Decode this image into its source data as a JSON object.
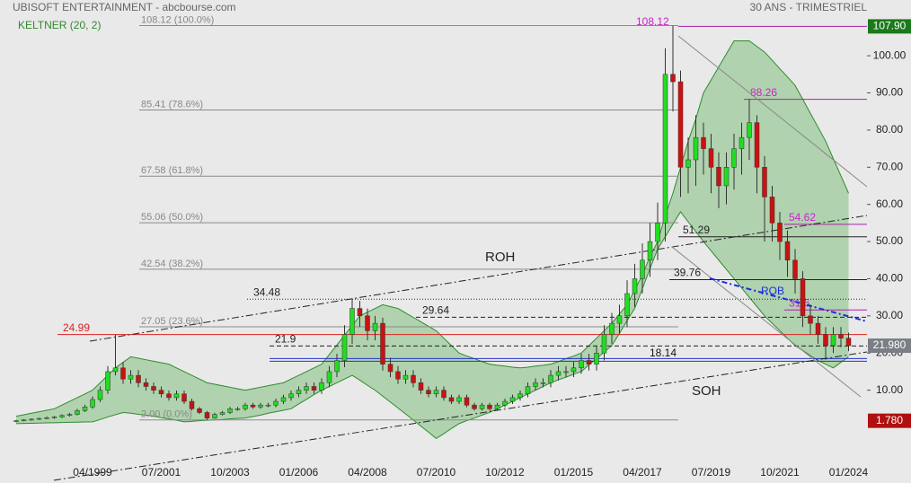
{
  "chart_data": {
    "type": "candlestick",
    "title": "UBISOFT ENTERTAINMENT - abcbourse.com",
    "subtitle": "30 ANS - TRIMESTRIEL",
    "up_color": "#22dd22",
    "down_color": "#cc1111",
    "categories": [
      null,
      null,
      null,
      null,
      null,
      null,
      null,
      null,
      null,
      null,
      "04/1999",
      null,
      null,
      null,
      null,
      null,
      null,
      null,
      null,
      "07/2001",
      null,
      null,
      null,
      null,
      null,
      null,
      null,
      null,
      "10/2003",
      null,
      null,
      null,
      null,
      null,
      null,
      null,
      null,
      "01/2006",
      null,
      null,
      null,
      null,
      null,
      null,
      null,
      null,
      "04/2008",
      null,
      null,
      null,
      null,
      null,
      null,
      null,
      null,
      "07/2010",
      null,
      null,
      null,
      null,
      null,
      null,
      null,
      null,
      "10/2012",
      null,
      null,
      null,
      null,
      null,
      null,
      null,
      null,
      "01/2015",
      null,
      null,
      null,
      null,
      null,
      null,
      null,
      null,
      "04/2017",
      null,
      null,
      null,
      null,
      null,
      null,
      null,
      null,
      "07/2019",
      null,
      null,
      null,
      null,
      null,
      null,
      null,
      null,
      "10/2021",
      null,
      null,
      null,
      null,
      null,
      null,
      null,
      null,
      "01/2024"
    ],
    "open": [
      1.6,
      1.8,
      2.0,
      2.2,
      2.4,
      2.6,
      2.8,
      3.2,
      3.5,
      4.5,
      5.5,
      7.5,
      10,
      15,
      16,
      13,
      14,
      12,
      11,
      10,
      9,
      8,
      9,
      7,
      5,
      4,
      2.5,
      3.5,
      4,
      5,
      5,
      6,
      5.5,
      6,
      6,
      7,
      8,
      9,
      10,
      11,
      10,
      12,
      15,
      18,
      25,
      32,
      30,
      26,
      28,
      17,
      15,
      13,
      14,
      12,
      10,
      9,
      10,
      8,
      7,
      8,
      6,
      5,
      6,
      5,
      6,
      7,
      8,
      9,
      11,
      12,
      12,
      14,
      15,
      15,
      16,
      18,
      17,
      20,
      25,
      28,
      30,
      36,
      40,
      45,
      50,
      55,
      95,
      93,
      70,
      72,
      78,
      75,
      70,
      65,
      70,
      75,
      78,
      82,
      70,
      62,
      55,
      50,
      45,
      40,
      30,
      28,
      25,
      22,
      25,
      24
    ],
    "high": [
      2.0,
      2.2,
      2.4,
      2.6,
      2.9,
      3.1,
      3.5,
      3.9,
      5.0,
      6.1,
      8.3,
      11,
      16.5,
      24.99,
      17.6,
      15.4,
      15.4,
      13.2,
      12.1,
      11,
      9.9,
      9.9,
      9.9,
      7.7,
      5.5,
      4.4,
      3.9,
      4.4,
      5.5,
      5.5,
      6.6,
      6.6,
      6.6,
      6.6,
      7.7,
      8.8,
      9.9,
      11,
      12.1,
      12.1,
      13.2,
      16.5,
      19.8,
      27.5,
      34.48,
      34,
      32,
      30,
      29.5,
      18.7,
      16.5,
      15.4,
      15.4,
      13.2,
      11,
      11,
      11,
      8.8,
      8.8,
      8.8,
      6.6,
      6.6,
      6.6,
      6.6,
      7.7,
      8.8,
      9.9,
      12.1,
      13.2,
      13.2,
      15.4,
      16.5,
      16.5,
      17.6,
      19.8,
      19.8,
      22,
      27.5,
      30.8,
      33,
      39.6,
      44,
      49.5,
      55,
      60.5,
      102,
      108.12,
      96,
      78,
      84,
      82,
      79,
      74,
      74,
      79,
      82,
      88.26,
      84,
      73,
      65,
      58,
      53,
      48,
      42,
      33,
      30,
      27,
      27,
      27,
      25.5
    ],
    "low": [
      1.4,
      1.6,
      1.8,
      2.0,
      2.2,
      2.3,
      2.5,
      2.9,
      3.2,
      4.1,
      5.0,
      6.8,
      9,
      14,
      11.7,
      11.7,
      10.8,
      9.9,
      9,
      8.1,
      7.2,
      7.2,
      6.3,
      4.5,
      3.6,
      2.0,
      2.3,
      3.2,
      3.6,
      4.5,
      4.5,
      5.0,
      5.0,
      5.4,
      5.4,
      6.3,
      7.2,
      8.1,
      9,
      9,
      9,
      10.8,
      13.5,
      16.2,
      22.5,
      27,
      23.4,
      23.4,
      15.3,
      13.5,
      11.7,
      11.7,
      10.8,
      9,
      8.1,
      8.1,
      7.2,
      6.3,
      6.3,
      5.4,
      4.5,
      4.5,
      4.5,
      4.5,
      5.4,
      6.3,
      7.2,
      8.1,
      9.9,
      10.8,
      10.8,
      12.6,
      13.5,
      13.5,
      14.4,
      15.3,
      15.3,
      18,
      22.5,
      25.2,
      27,
      32.4,
      36,
      40.5,
      45,
      50,
      85,
      62,
      63,
      65,
      68,
      63,
      59,
      60,
      64,
      68,
      72,
      63,
      50,
      50,
      45,
      40.5,
      36,
      27,
      25,
      22.5,
      18.14,
      20,
      21.6,
      20.5
    ],
    "close": [
      1.8,
      2.0,
      2.2,
      2.4,
      2.6,
      2.8,
      3.2,
      3.5,
      4.5,
      5.5,
      7.5,
      10,
      15,
      16,
      13,
      14,
      12,
      11,
      10,
      9,
      8,
      9,
      7,
      5,
      4,
      2.5,
      3.5,
      4,
      5,
      5,
      6,
      5.5,
      6,
      6,
      7,
      8,
      9,
      10,
      11,
      10,
      12,
      15,
      18,
      25,
      32,
      30,
      26,
      28,
      17,
      15,
      13,
      14,
      12,
      10,
      9,
      10,
      8,
      7,
      8,
      6,
      5,
      6,
      5,
      6,
      7,
      8,
      9,
      11,
      12,
      12,
      14,
      15,
      15,
      16,
      18,
      17,
      20,
      25,
      28,
      30,
      36,
      40,
      45,
      50,
      55,
      95,
      93,
      70,
      72,
      78,
      75,
      70,
      65,
      70,
      75,
      78,
      82,
      70,
      62,
      55,
      50,
      45,
      40,
      30,
      28,
      25,
      22,
      25,
      24,
      21.98
    ],
    "keltner": {
      "name": "KELTNER (20, 2)",
      "color": "#2e8b2e",
      "upper": [
        3,
        3.4,
        3.8,
        4.2,
        4.6,
        5,
        6,
        7,
        8,
        9,
        10,
        12,
        14,
        16,
        17.5,
        19,
        18.6,
        18.2,
        17.8,
        17.4,
        17,
        16,
        15,
        14,
        13,
        12,
        11.6,
        11.2,
        10.8,
        10.4,
        10,
        10.4,
        10.8,
        11.2,
        11.6,
        12,
        13,
        14,
        15,
        16,
        17,
        19.6,
        22.2,
        24.8,
        27.4,
        30,
        31,
        32,
        33,
        32.5,
        32,
        30.8,
        29.6,
        28.4,
        27.2,
        26,
        24,
        22,
        20,
        19.2,
        18.5,
        17.7,
        17,
        16.7,
        16.5,
        16.2,
        16,
        16.2,
        16.5,
        16.7,
        17,
        17.7,
        18.5,
        19.2,
        20,
        22,
        24,
        26,
        28,
        30.5,
        33,
        37,
        41,
        46,
        50,
        57,
        63,
        70,
        77,
        83,
        90,
        93.5,
        97,
        100.5,
        104,
        104,
        104,
        102.5,
        101,
        98.8,
        96.5,
        94.3,
        92,
        88.3,
        84.5,
        80.8,
        77,
        72.3,
        67.7,
        63
      ],
      "lower": [
        1,
        1.05,
        1.1,
        1.15,
        1.2,
        1.25,
        1.3,
        1.35,
        1.4,
        1.45,
        1.5,
        2.1,
        2.8,
        3.4,
        4,
        3.8,
        3.5,
        3.3,
        3,
        2.6,
        2.3,
        1.9,
        1.5,
        1.6,
        1.8,
        1.9,
        2,
        2.1,
        2.3,
        2.4,
        2.5,
        2.9,
        3.3,
        3.8,
        4.2,
        4.6,
        5,
        6.3,
        7.5,
        8.8,
        10,
        11,
        12,
        13,
        14,
        12.7,
        11.3,
        10,
        8.4,
        6.8,
        5.2,
        3.6,
        2,
        0.3,
        -1.3,
        -3,
        -1.7,
        -0.3,
        1,
        1.8,
        2.5,
        3.3,
        4,
        5,
        6,
        7,
        8,
        9,
        10,
        11,
        12,
        12.8,
        13.5,
        14.3,
        15,
        16.8,
        18.5,
        20.3,
        22,
        25.3,
        28.7,
        32,
        37.3,
        42.7,
        48,
        51.3,
        54.7,
        58,
        55.3,
        52.7,
        50,
        47.5,
        45,
        42.5,
        40,
        37.5,
        35,
        32.5,
        30,
        28,
        26,
        24,
        22,
        20.7,
        19.3,
        18,
        17,
        16,
        17.5,
        19
      ]
    },
    "ylim": [
      -7,
      115
    ],
    "yticks": [
      {
        "value": 10,
        "label": "10.00"
      },
      {
        "value": 20,
        "label": "20.00"
      },
      {
        "value": 30,
        "label": "30.00"
      },
      {
        "value": 40,
        "label": "40.00"
      },
      {
        "value": 50,
        "label": "50.00"
      },
      {
        "value": 60,
        "label": "60.00"
      },
      {
        "value": 70,
        "label": "70.00"
      },
      {
        "value": 80,
        "label": "80.00"
      },
      {
        "value": 90,
        "label": "90.00"
      },
      {
        "value": 100,
        "label": "100.00"
      }
    ],
    "fibonacci": [
      {
        "value": 108.12,
        "label": "108.12 (100.0%)"
      },
      {
        "value": 85.41,
        "label": "85.41 (78.6%)"
      },
      {
        "value": 67.58,
        "label": "67.58 (61.8%)"
      },
      {
        "value": 55.06,
        "label": "55.06 (50.0%)"
      },
      {
        "value": 42.54,
        "label": "42.54 (38.2%)"
      },
      {
        "value": 27.05,
        "label": "27.05 (23.6%)"
      },
      {
        "value": 2.0,
        "label": "2.00 (0.0%)"
      }
    ],
    "peak": 108.12,
    "levels": [
      {
        "value": 107.9,
        "color": "#aa22aa",
        "style": "solid"
      },
      {
        "value": 88.26,
        "color": "#aa22aa",
        "style": "solid"
      },
      {
        "value": 54.62,
        "color": "#aa22aa",
        "style": "solid"
      },
      {
        "value": 31.6,
        "color": "#aa22aa",
        "style": "solid"
      },
      {
        "value": 51.29,
        "color": "#222222",
        "style": "solid"
      },
      {
        "value": 39.76,
        "color": "#222222",
        "style": "solid"
      },
      {
        "value": 34.48,
        "color": "#222222",
        "style": "dotted"
      },
      {
        "value": 29.64,
        "color": "#222222",
        "style": "dashed"
      },
      {
        "value": 24.99,
        "color": "#dd2222",
        "style": "solid"
      },
      {
        "value": 21.9,
        "color": "#222222",
        "style": "dashed"
      },
      {
        "value": 18.14,
        "color": "#2233cc",
        "style": "double"
      }
    ],
    "badges": [
      {
        "value": 107.9,
        "label": "107.90",
        "color": "#1a7a1a"
      },
      {
        "value": 21.98,
        "label": "21.980",
        "color": "#7a7f86"
      },
      {
        "value": 1.78,
        "label": "1.780",
        "color": "#b01010"
      }
    ],
    "annotations": {
      "roh": "ROH",
      "soh": "SOH",
      "rob": "ROB"
    }
  }
}
